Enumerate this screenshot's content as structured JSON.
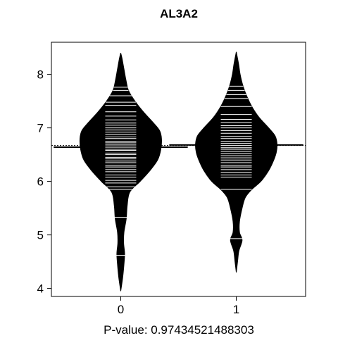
{
  "chart_data": {
    "type": "beanplot",
    "title": "AL3A2",
    "xlabel": "P-value: 0.97434521488303",
    "ylabel": "",
    "categories": [
      "0",
      "1"
    ],
    "xlim": [
      -0.6,
      1.6
    ],
    "ylim": [
      3.85,
      8.6
    ],
    "yticks": [
      4,
      5,
      6,
      7,
      8
    ],
    "overall_mean": 6.67,
    "grid": false,
    "legend": "none",
    "colors": {
      "bean_fill": "#000000",
      "data_line": "#ffffff",
      "mean_line": "#000000"
    },
    "series": [
      {
        "category": "0",
        "mean": 6.64,
        "density": [
          [
            3.95,
            0.0
          ],
          [
            4.2,
            0.03
          ],
          [
            4.45,
            0.05
          ],
          [
            4.65,
            0.06
          ],
          [
            4.85,
            0.045
          ],
          [
            5.05,
            0.05
          ],
          [
            5.3,
            0.085
          ],
          [
            5.55,
            0.1
          ],
          [
            5.8,
            0.14
          ],
          [
            6.0,
            0.3
          ],
          [
            6.2,
            0.45
          ],
          [
            6.4,
            0.57
          ],
          [
            6.6,
            0.62
          ],
          [
            6.8,
            0.63
          ],
          [
            6.95,
            0.6
          ],
          [
            7.1,
            0.5
          ],
          [
            7.3,
            0.35
          ],
          [
            7.5,
            0.22
          ],
          [
            7.7,
            0.12
          ],
          [
            7.9,
            0.08
          ],
          [
            8.1,
            0.05
          ],
          [
            8.3,
            0.02
          ],
          [
            8.4,
            0.0
          ]
        ],
        "points": [
          4.62,
          5.33,
          5.85,
          5.9,
          5.97,
          6.02,
          6.08,
          6.12,
          6.18,
          6.22,
          6.27,
          6.3,
          6.35,
          6.38,
          6.42,
          6.45,
          6.5,
          6.53,
          6.58,
          6.6,
          6.64,
          6.68,
          6.72,
          6.75,
          6.8,
          6.83,
          6.88,
          6.92,
          6.96,
          7.0,
          7.05,
          7.09,
          7.15,
          7.22,
          7.3,
          7.42,
          7.48,
          7.6,
          7.7,
          7.76
        ]
      },
      {
        "category": "1",
        "mean": 6.68,
        "density": [
          [
            4.3,
            0.0
          ],
          [
            4.5,
            0.02
          ],
          [
            4.7,
            0.04
          ],
          [
            4.9,
            0.09
          ],
          [
            5.05,
            0.05
          ],
          [
            5.25,
            0.05
          ],
          [
            5.5,
            0.09
          ],
          [
            5.7,
            0.14
          ],
          [
            5.85,
            0.24
          ],
          [
            6.0,
            0.38
          ],
          [
            6.2,
            0.5
          ],
          [
            6.4,
            0.58
          ],
          [
            6.55,
            0.62
          ],
          [
            6.7,
            0.63
          ],
          [
            6.85,
            0.6
          ],
          [
            7.0,
            0.5
          ],
          [
            7.2,
            0.35
          ],
          [
            7.4,
            0.24
          ],
          [
            7.6,
            0.16
          ],
          [
            7.8,
            0.1
          ],
          [
            8.0,
            0.06
          ],
          [
            8.2,
            0.035
          ],
          [
            8.42,
            0.0
          ]
        ],
        "points": [
          4.93,
          5.85,
          6.08,
          6.12,
          6.17,
          6.22,
          6.27,
          6.3,
          6.35,
          6.4,
          6.44,
          6.48,
          6.52,
          6.56,
          6.6,
          6.63,
          6.67,
          6.71,
          6.75,
          6.8,
          6.84,
          6.9,
          6.95,
          7.0,
          7.04,
          7.1,
          7.16,
          7.25,
          7.4,
          7.55,
          7.62,
          7.7,
          7.78
        ]
      }
    ]
  }
}
